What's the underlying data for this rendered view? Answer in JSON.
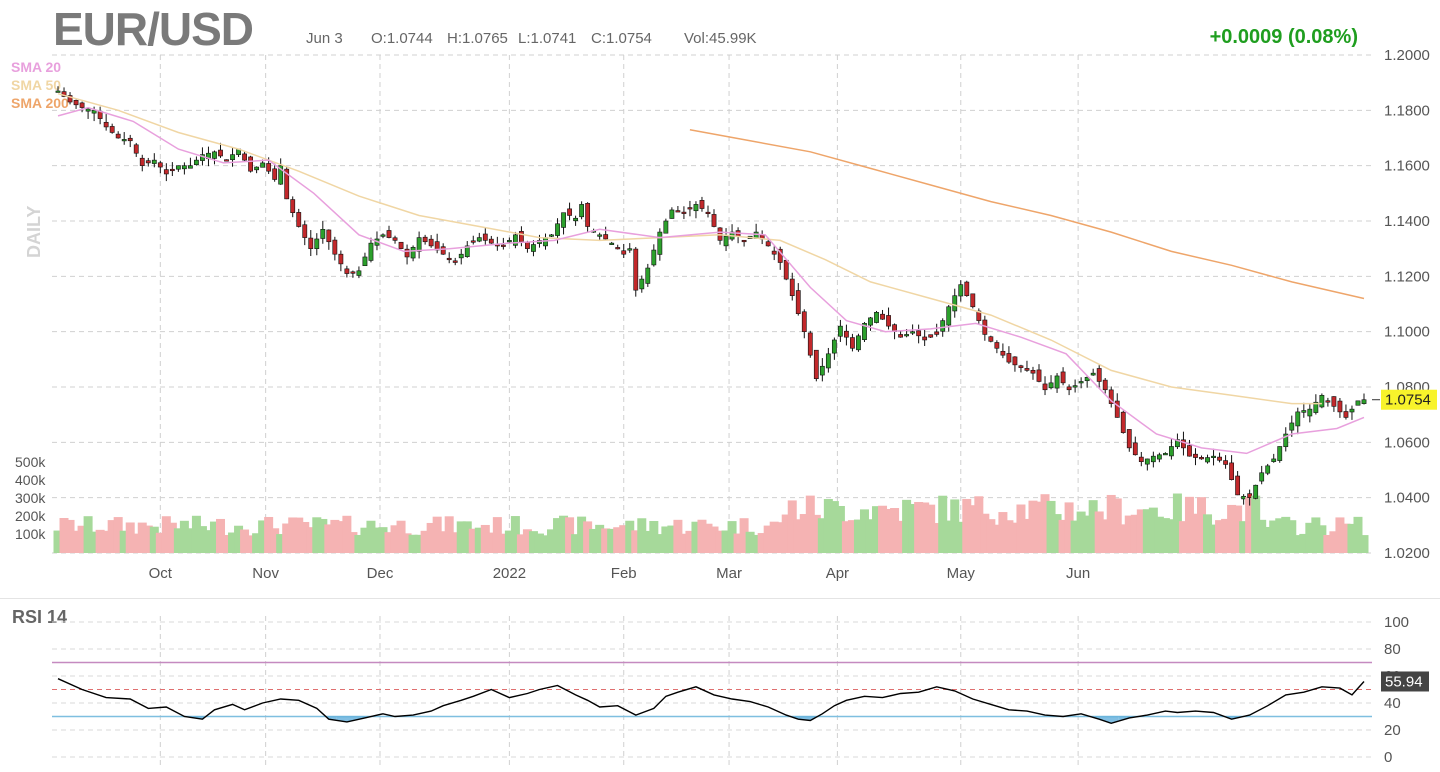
{
  "header": {
    "symbol": "EUR/USD",
    "date": "Jun 3",
    "open": "O:1.0744",
    "high": "H:1.0765",
    "low": "L:1.0741",
    "close": "C:1.0754",
    "volume": "Vol:45.99K",
    "change": "+0.0009 (0.08%)"
  },
  "legend": {
    "sma20": "SMA 20",
    "sma50": "SMA 50",
    "sma200": "SMA 200",
    "timeframe": "DAILY"
  },
  "colors": {
    "up": "#2ca02c",
    "down": "#c2282b",
    "vol_up": "#a6d99a",
    "vol_down": "#f5b3b3",
    "sma20": "#e8a0dd",
    "sma50": "#f0d6a4",
    "sma200": "#eea56a",
    "rsi_line": "#000000",
    "rsi_overbought": "#c58ac0",
    "rsi_oversold": "#7fbfe0",
    "last_price_bg": "#f8f32b"
  },
  "chart_data": [
    {
      "type": "candlestick",
      "price_axis": {
        "min": 1.02,
        "max": 1.2,
        "ticks": [
          "1.2000",
          "1.1800",
          "1.1600",
          "1.1400",
          "1.1200",
          "1.1000",
          "1.0800",
          "1.0600",
          "1.0400",
          "1.0200"
        ]
      },
      "x_labels": [
        "Oct",
        "Nov",
        "Dec",
        "2022",
        "Feb",
        "Mar",
        "Apr",
        "May",
        "Jun"
      ],
      "last_price": "1.0754",
      "close_path": [
        [
          0,
          1.187
        ],
        [
          4,
          1.183
        ],
        [
          8,
          1.181
        ],
        [
          12,
          1.18
        ],
        [
          16,
          1.174
        ],
        [
          20,
          1.17
        ],
        [
          24,
          1.169
        ],
        [
          28,
          1.16
        ],
        [
          32,
          1.162
        ],
        [
          36,
          1.157
        ],
        [
          40,
          1.16
        ],
        [
          44,
          1.16
        ],
        [
          48,
          1.164
        ],
        [
          52,
          1.165
        ],
        [
          56,
          1.162
        ],
        [
          60,
          1.166
        ],
        [
          64,
          1.158
        ],
        [
          68,
          1.161
        ],
        [
          72,
          1.155
        ],
        [
          74,
          1.16
        ],
        [
          76,
          1.148
        ],
        [
          80,
          1.138
        ],
        [
          84,
          1.13
        ],
        [
          88,
          1.137
        ],
        [
          92,
          1.128
        ],
        [
          96,
          1.121
        ],
        [
          100,
          1.122
        ],
        [
          104,
          1.132
        ],
        [
          108,
          1.135
        ],
        [
          112,
          1.133
        ],
        [
          116,
          1.127
        ],
        [
          120,
          1.134
        ],
        [
          124,
          1.131
        ],
        [
          128,
          1.128
        ],
        [
          132,
          1.125
        ],
        [
          136,
          1.131
        ],
        [
          140,
          1.134
        ],
        [
          144,
          1.132
        ],
        [
          148,
          1.131
        ],
        [
          152,
          1.135
        ],
        [
          156,
          1.13
        ],
        [
          160,
          1.133
        ],
        [
          164,
          1.135
        ],
        [
          168,
          1.143
        ],
        [
          172,
          1.141
        ],
        [
          174,
          1.146
        ],
        [
          176,
          1.138
        ],
        [
          180,
          1.135
        ],
        [
          184,
          1.132
        ],
        [
          188,
          1.128
        ],
        [
          190,
          1.13
        ],
        [
          192,
          1.115
        ],
        [
          196,
          1.123
        ],
        [
          200,
          1.136
        ],
        [
          204,
          1.144
        ],
        [
          208,
          1.143
        ],
        [
          212,
          1.146
        ],
        [
          216,
          1.143
        ],
        [
          220,
          1.133
        ],
        [
          224,
          1.136
        ],
        [
          228,
          1.133
        ],
        [
          232,
          1.136
        ],
        [
          236,
          1.131
        ],
        [
          240,
          1.125
        ],
        [
          244,
          1.113
        ],
        [
          248,
          1.1
        ],
        [
          252,
          1.083
        ],
        [
          256,
          1.092
        ],
        [
          260,
          1.102
        ],
        [
          264,
          1.094
        ],
        [
          268,
          1.103
        ],
        [
          272,
          1.107
        ],
        [
          276,
          1.102
        ],
        [
          280,
          1.098
        ],
        [
          284,
          1.1
        ],
        [
          288,
          1.097
        ],
        [
          292,
          1.099
        ],
        [
          296,
          1.109
        ],
        [
          300,
          1.117
        ],
        [
          304,
          1.109
        ],
        [
          308,
          1.099
        ],
        [
          312,
          1.094
        ],
        [
          316,
          1.089
        ],
        [
          320,
          1.087
        ],
        [
          324,
          1.085
        ],
        [
          328,
          1.079
        ],
        [
          332,
          1.084
        ],
        [
          336,
          1.079
        ],
        [
          340,
          1.082
        ],
        [
          344,
          1.085
        ],
        [
          348,
          1.079
        ],
        [
          352,
          1.069
        ],
        [
          356,
          1.058
        ],
        [
          360,
          1.053
        ],
        [
          364,
          1.055
        ],
        [
          368,
          1.056
        ],
        [
          372,
          1.061
        ],
        [
          376,
          1.055
        ],
        [
          380,
          1.054
        ],
        [
          384,
          1.055
        ],
        [
          388,
          1.052
        ],
        [
          392,
          1.041
        ],
        [
          396,
          1.04
        ],
        [
          400,
          1.049
        ],
        [
          404,
          1.054
        ],
        [
          408,
          1.063
        ],
        [
          412,
          1.071
        ],
        [
          416,
          1.072
        ],
        [
          420,
          1.077
        ],
        [
          424,
          1.073
        ],
        [
          428,
          1.069
        ],
        [
          432,
          1.075
        ],
        [
          434,
          1.0754
        ]
      ],
      "sma_paths": {
        "sma20": [
          [
            0,
            1.178
          ],
          [
            10,
            1.181
          ],
          [
            25,
            1.176
          ],
          [
            40,
            1.166
          ],
          [
            55,
            1.161
          ],
          [
            70,
            1.162
          ],
          [
            85,
            1.15
          ],
          [
            100,
            1.135
          ],
          [
            115,
            1.129
          ],
          [
            130,
            1.13
          ],
          [
            150,
            1.132
          ],
          [
            165,
            1.133
          ],
          [
            180,
            1.137
          ],
          [
            200,
            1.134
          ],
          [
            220,
            1.136
          ],
          [
            235,
            1.135
          ],
          [
            250,
            1.116
          ],
          [
            262,
            1.104
          ],
          [
            275,
            1.1
          ],
          [
            290,
            1.101
          ],
          [
            305,
            1.103
          ],
          [
            320,
            1.098
          ],
          [
            335,
            1.092
          ],
          [
            350,
            1.075
          ],
          [
            365,
            1.063
          ],
          [
            380,
            1.058
          ],
          [
            395,
            1.056
          ],
          [
            410,
            1.063
          ],
          [
            425,
            1.065
          ],
          [
            434,
            1.069
          ]
        ],
        "sma50": [
          [
            0,
            1.186
          ],
          [
            20,
            1.18
          ],
          [
            40,
            1.172
          ],
          [
            60,
            1.166
          ],
          [
            80,
            1.158
          ],
          [
            100,
            1.149
          ],
          [
            120,
            1.142
          ],
          [
            140,
            1.138
          ],
          [
            160,
            1.134
          ],
          [
            180,
            1.133
          ],
          [
            200,
            1.134
          ],
          [
            220,
            1.135
          ],
          [
            240,
            1.133
          ],
          [
            255,
            1.126
          ],
          [
            270,
            1.118
          ],
          [
            290,
            1.112
          ],
          [
            310,
            1.106
          ],
          [
            330,
            1.097
          ],
          [
            350,
            1.086
          ],
          [
            370,
            1.08
          ],
          [
            390,
            1.077
          ],
          [
            410,
            1.074
          ],
          [
            420,
            1.074
          ]
        ],
        "sma200": [
          [
            210,
            1.173
          ],
          [
            230,
            1.169
          ],
          [
            250,
            1.165
          ],
          [
            270,
            1.159
          ],
          [
            290,
            1.153
          ],
          [
            310,
            1.147
          ],
          [
            330,
            1.142
          ],
          [
            350,
            1.136
          ],
          [
            370,
            1.129
          ],
          [
            390,
            1.124
          ],
          [
            410,
            1.118
          ],
          [
            434,
            1.112
          ]
        ]
      },
      "volume_axis": {
        "ticks": [
          "500k",
          "400k",
          "300k",
          "200k",
          "100k"
        ]
      }
    },
    {
      "type": "line",
      "name": "RSI 14",
      "y_axis": {
        "min": 0,
        "max": 100,
        "ticks": [
          "100",
          "80",
          "60",
          "40",
          "20",
          "0"
        ]
      },
      "overbought": 70,
      "oversold": 30,
      "last_value": "55.94",
      "values_path": [
        [
          0,
          58
        ],
        [
          8,
          50
        ],
        [
          16,
          44
        ],
        [
          24,
          43
        ],
        [
          30,
          36
        ],
        [
          36,
          37
        ],
        [
          42,
          30
        ],
        [
          48,
          28
        ],
        [
          52,
          35
        ],
        [
          58,
          39
        ],
        [
          62,
          35
        ],
        [
          68,
          40
        ],
        [
          74,
          43
        ],
        [
          80,
          42
        ],
        [
          86,
          36
        ],
        [
          90,
          28
        ],
        [
          96,
          26
        ],
        [
          102,
          29
        ],
        [
          108,
          32
        ],
        [
          112,
          30
        ],
        [
          118,
          31
        ],
        [
          124,
          34
        ],
        [
          128,
          38
        ],
        [
          134,
          42
        ],
        [
          138,
          45
        ],
        [
          144,
          50
        ],
        [
          150,
          44
        ],
        [
          156,
          47
        ],
        [
          160,
          50
        ],
        [
          166,
          53
        ],
        [
          172,
          46
        ],
        [
          176,
          42
        ],
        [
          180,
          37
        ],
        [
          186,
          38
        ],
        [
          192,
          31
        ],
        [
          198,
          36
        ],
        [
          202,
          45
        ],
        [
          206,
          48
        ],
        [
          212,
          52
        ],
        [
          218,
          46
        ],
        [
          224,
          43
        ],
        [
          230,
          41
        ],
        [
          236,
          37
        ],
        [
          242,
          31
        ],
        [
          246,
          28
        ],
        [
          250,
          27
        ],
        [
          254,
          32
        ],
        [
          258,
          38
        ],
        [
          262,
          42
        ],
        [
          268,
          45
        ],
        [
          274,
          44
        ],
        [
          280,
          47
        ],
        [
          286,
          48
        ],
        [
          292,
          52
        ],
        [
          298,
          49
        ],
        [
          304,
          43
        ],
        [
          310,
          39
        ],
        [
          316,
          35
        ],
        [
          322,
          34
        ],
        [
          328,
          31
        ],
        [
          334,
          30
        ],
        [
          340,
          32
        ],
        [
          346,
          28
        ],
        [
          350,
          25
        ],
        [
          356,
          29
        ],
        [
          362,
          31
        ],
        [
          368,
          34
        ],
        [
          372,
          33
        ],
        [
          378,
          34
        ],
        [
          384,
          33
        ],
        [
          390,
          28
        ],
        [
          396,
          31
        ],
        [
          402,
          38
        ],
        [
          408,
          46
        ],
        [
          414,
          48
        ],
        [
          420,
          52
        ],
        [
          426,
          51
        ],
        [
          430,
          46
        ],
        [
          434,
          55.94
        ]
      ]
    }
  ]
}
